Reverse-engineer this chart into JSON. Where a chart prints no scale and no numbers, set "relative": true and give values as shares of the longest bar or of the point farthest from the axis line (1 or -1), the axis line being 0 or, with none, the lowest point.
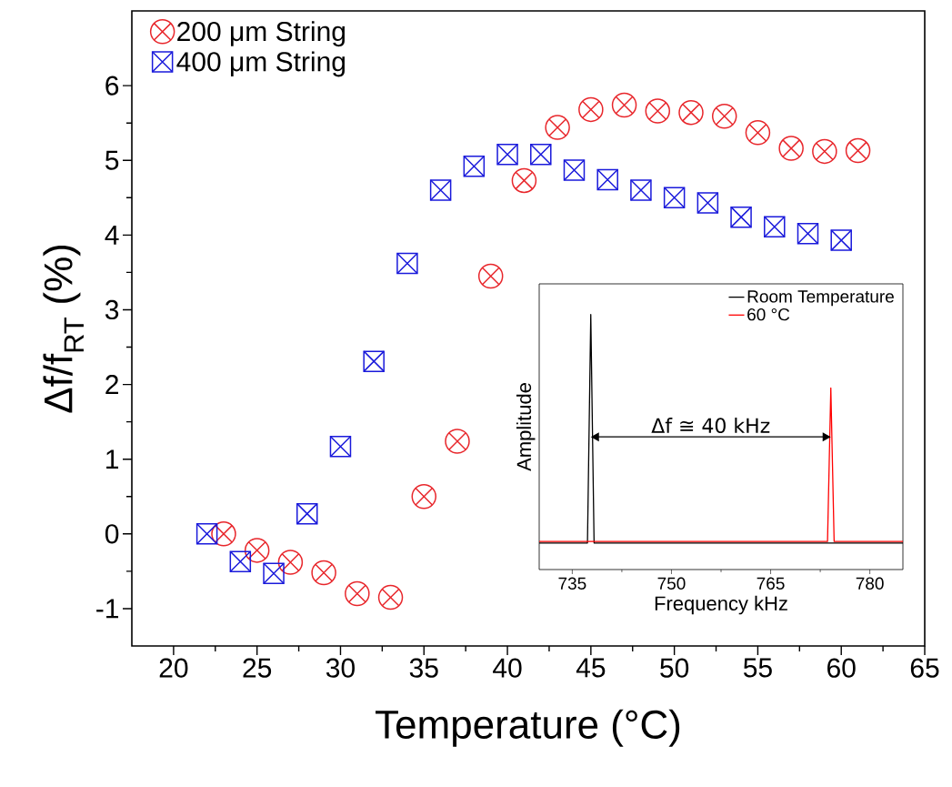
{
  "chart_data": [
    {
      "type": "scatter",
      "xlabel": "Temperature (°C)",
      "ylabel": "Δf/f$_{RT}$ (%)",
      "xlim": [
        17.5,
        65
      ],
      "ylim": [
        -1.5,
        7
      ],
      "xticks": [
        20,
        25,
        30,
        35,
        40,
        45,
        50,
        55,
        60,
        65
      ],
      "yticks": [
        -1,
        0,
        1,
        2,
        3,
        4,
        5,
        6
      ],
      "legend": "top left",
      "grid": false,
      "series": [
        {
          "name": "200 μm String",
          "color": "#e8262b",
          "marker": "circle",
          "x": [
            23,
            25,
            27,
            29,
            31,
            33,
            35,
            37,
            39,
            41,
            43,
            45,
            47,
            49,
            51,
            53,
            55,
            57,
            59,
            61
          ],
          "values": [
            0,
            -0.22,
            -0.38,
            -0.52,
            -0.8,
            -0.85,
            0.5,
            1.24,
            3.45,
            4.73,
            5.44,
            5.68,
            5.74,
            5.66,
            5.64,
            5.59,
            5.37,
            5.16,
            5.12,
            5.13
          ]
        },
        {
          "name": "400 μm String",
          "color": "#1a1adb",
          "marker": "square",
          "x": [
            22,
            24,
            26,
            28,
            30,
            32,
            34,
            36,
            38,
            40,
            42,
            44,
            46,
            48,
            50,
            52,
            54,
            56,
            58,
            60
          ],
          "values": [
            0,
            -0.37,
            -0.53,
            0.27,
            1.17,
            2.31,
            3.62,
            4.6,
            4.92,
            5.08,
            5.08,
            4.87,
            4.74,
            4.6,
            4.5,
            4.43,
            4.24,
            4.11,
            4.02,
            3.93
          ]
        }
      ]
    },
    {
      "type": "line",
      "relative": true,
      "xlabel": "Frequency kHz",
      "ylabel": "Amplitude",
      "xlim": [
        730,
        785
      ],
      "xticks": [
        735,
        750,
        765,
        780
      ],
      "tick_labels": "x",
      "legend": "top right",
      "grid": false,
      "annotations": [
        "Δf ≅ 40 kHz"
      ],
      "series": [
        {
          "name": "Room Temperature",
          "color": "#000000",
          "x": [
            730,
            737.3,
            737.8,
            738.3,
            785
          ],
          "values": [
            0.104,
            0.104,
            1,
            0.104,
            0.104
          ]
        },
        {
          "name": "60 °C",
          "color": "#ff0000",
          "x": [
            730,
            773.6,
            774.1,
            774.6,
            785
          ],
          "values": [
            0.11,
            0.11,
            0.712,
            0.11,
            0.11
          ]
        }
      ]
    }
  ]
}
